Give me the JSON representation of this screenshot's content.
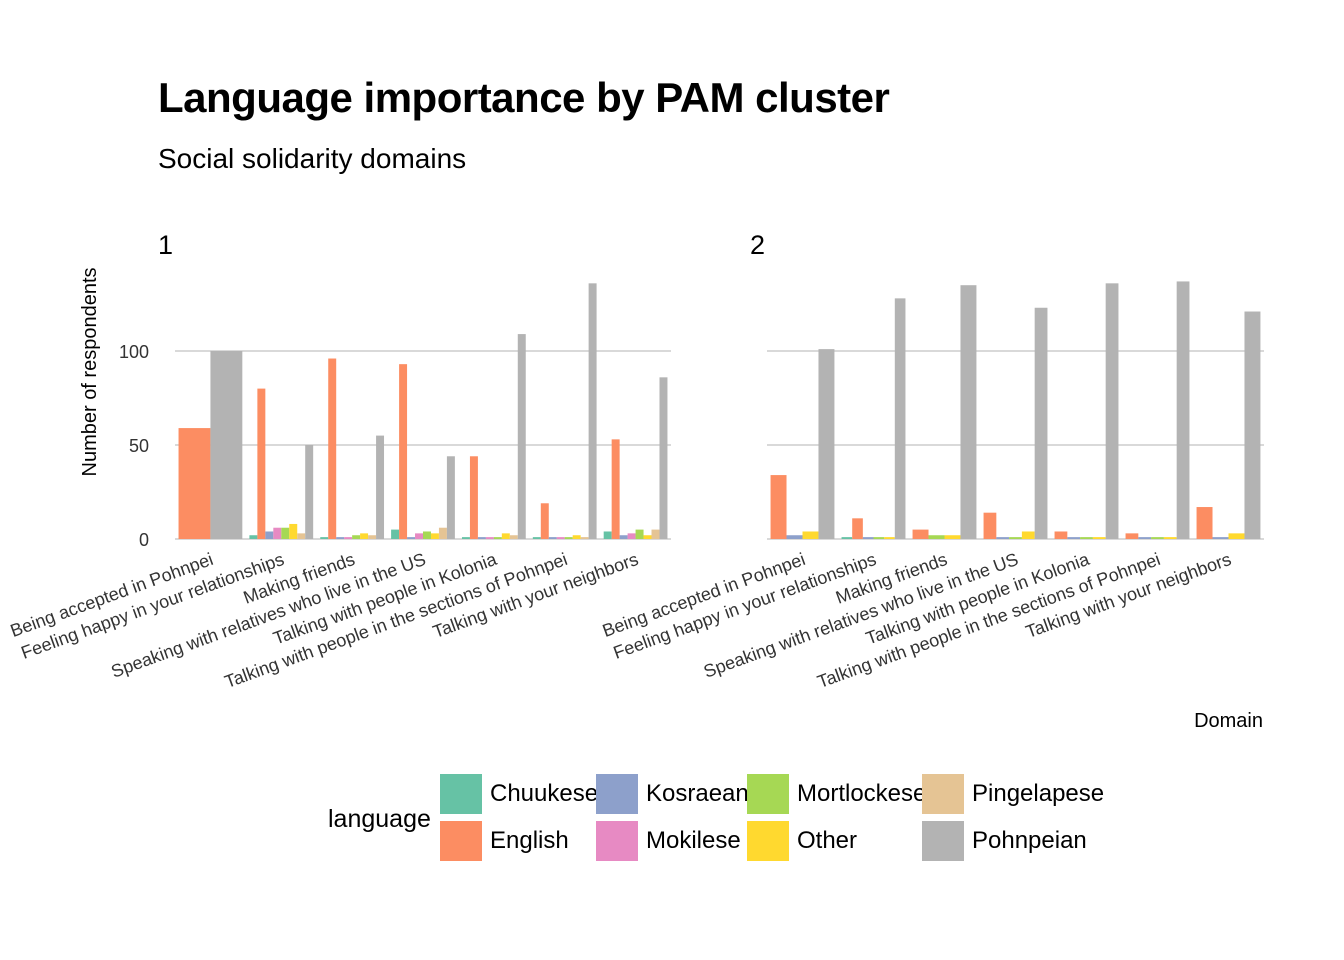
{
  "chart_data": {
    "type": "bar",
    "title": "Language importance by PAM cluster",
    "subtitle": "Social solidarity domains",
    "xlabel": "Domain",
    "ylabel": "Number of respondents",
    "yticks": [
      0,
      50,
      100
    ],
    "ylim": [
      0,
      140
    ],
    "grid": "horizontal",
    "legend": {
      "title": "language",
      "position": "bottom"
    },
    "categories": [
      "Being accepted in Pohnpei",
      "Feeling happy in your relationships",
      "Making friends",
      "Speaking with relatives who live in the US",
      "Talking with people in Kolonia",
      "Talking with people in the sections of Pohnpei",
      "Talking with your neighbors"
    ],
    "series_colors": {
      "Chuukese": "#66C2A5",
      "English": "#FC8D62",
      "Kosraean": "#8DA0CB",
      "Mokilese": "#E78AC3",
      "Mortlockese": "#A6D854",
      "Other": "#FFD92F",
      "Pingelapese": "#E5C494",
      "Pohnpeian": "#B3B3B3"
    },
    "facets": [
      {
        "label": "1",
        "series": [
          {
            "name": "Chuukese",
            "values": [
              null,
              2,
              1,
              5,
              1,
              1,
              4
            ]
          },
          {
            "name": "English",
            "values": [
              59,
              80,
              96,
              93,
              44,
              19,
              53
            ]
          },
          {
            "name": "Kosraean",
            "values": [
              null,
              4,
              1,
              1,
              1,
              1,
              2
            ]
          },
          {
            "name": "Mokilese",
            "values": [
              null,
              6,
              1,
              3,
              1,
              1,
              3
            ]
          },
          {
            "name": "Mortlockese",
            "values": [
              null,
              6,
              2,
              4,
              1,
              1,
              5
            ]
          },
          {
            "name": "Other",
            "values": [
              null,
              8,
              3,
              3,
              3,
              2,
              2
            ]
          },
          {
            "name": "Pingelapese",
            "values": [
              null,
              3,
              2,
              6,
              2,
              1,
              5
            ]
          },
          {
            "name": "Pohnpeian",
            "values": [
              100,
              50,
              55,
              44,
              109,
              136,
              86
            ]
          }
        ]
      },
      {
        "label": "2",
        "series": [
          {
            "name": "Chuukese",
            "values": [
              null,
              1,
              null,
              null,
              null,
              null,
              null
            ]
          },
          {
            "name": "English",
            "values": [
              34,
              11,
              5,
              14,
              4,
              3,
              17
            ]
          },
          {
            "name": "Kosraean",
            "values": [
              2,
              1,
              null,
              1,
              1,
              1,
              1
            ]
          },
          {
            "name": "Mortlockese",
            "values": [
              null,
              1,
              2,
              1,
              1,
              1,
              null
            ]
          },
          {
            "name": "Other",
            "values": [
              4,
              1,
              2,
              4,
              1,
              1,
              3
            ]
          },
          {
            "name": "Pohnpeian",
            "values": [
              101,
              128,
              135,
              123,
              136,
              137,
              121
            ]
          }
        ]
      }
    ]
  },
  "legend_items": [
    {
      "name": "Chuukese",
      "color": "#66C2A5"
    },
    {
      "name": "English",
      "color": "#FC8D62"
    },
    {
      "name": "Kosraean",
      "color": "#8DA0CB"
    },
    {
      "name": "Mokilese",
      "color": "#E78AC3"
    },
    {
      "name": "Mortlockese",
      "color": "#A6D854"
    },
    {
      "name": "Other",
      "color": "#FFD92F"
    },
    {
      "name": "Pingelapese",
      "color": "#E5C494"
    },
    {
      "name": "Pohnpeian",
      "color": "#B3B3B3"
    }
  ]
}
